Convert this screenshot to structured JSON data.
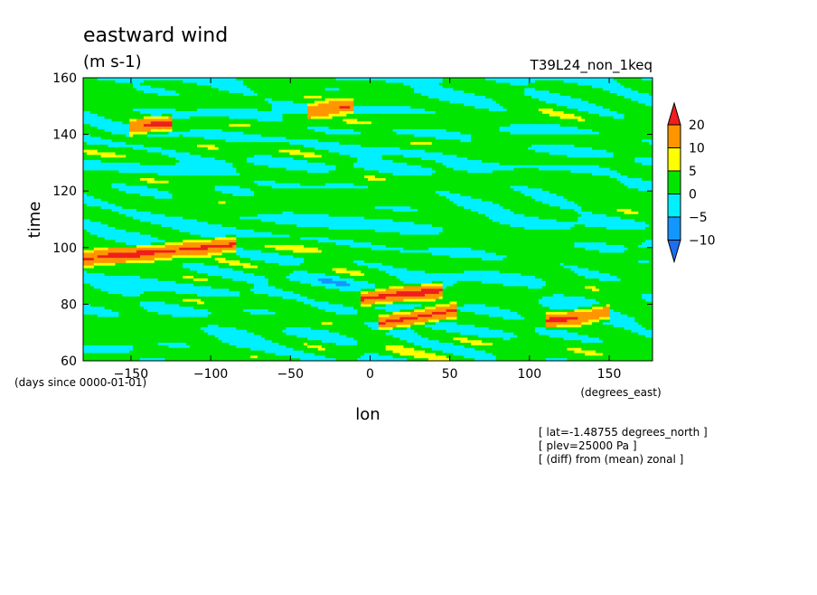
{
  "chart_data": {
    "type": "heatmap",
    "title": "eastward wind",
    "units": "(m s-1)",
    "experiment": "T39L24_non_1keq",
    "xlabel": "lon",
    "ylabel": "time",
    "x_units": "(degrees_east)",
    "y_units": "(days since 0000-01-01)",
    "xlim": [
      -180,
      177.1875
    ],
    "ylim": [
      60,
      160
    ],
    "x_ticks": [
      -150,
      -100,
      -50,
      0,
      50,
      100,
      150
    ],
    "y_ticks": [
      60,
      80,
      100,
      120,
      140,
      160
    ],
    "colorbar": {
      "levels": [
        -10,
        -5,
        0,
        5,
        10,
        20
      ],
      "colors": [
        "#1e6ef0",
        "#1496ff",
        "#00f0ff",
        "#00e600",
        "#ffff00",
        "#ff9600",
        "#f01e1e"
      ],
      "extend": "both"
    },
    "info_lines": [
      "[ lat=-1.48755 degrees_north ]",
      "[ plev=25000 Pa ]",
      "[ (diff) from (mean) zonal ]"
    ],
    "strong_positive_features": [
      {
        "lon_start": -180,
        "lon_end": -85,
        "time_start": 96,
        "time_end": 101
      },
      {
        "lon_start": -5,
        "lon_end": 45,
        "time_start": 82,
        "time_end": 85
      },
      {
        "lon_start": 5,
        "lon_end": 55,
        "time_start": 73,
        "time_end": 78
      },
      {
        "lon_start": 110,
        "lon_end": 150,
        "time_start": 74,
        "time_end": 77
      },
      {
        "lon_start": -40,
        "lon_end": -10,
        "time_start": 148,
        "time_end": 150
      },
      {
        "lon_start": -150,
        "lon_end": -125,
        "time_start": 142,
        "time_end": 144
      }
    ]
  }
}
